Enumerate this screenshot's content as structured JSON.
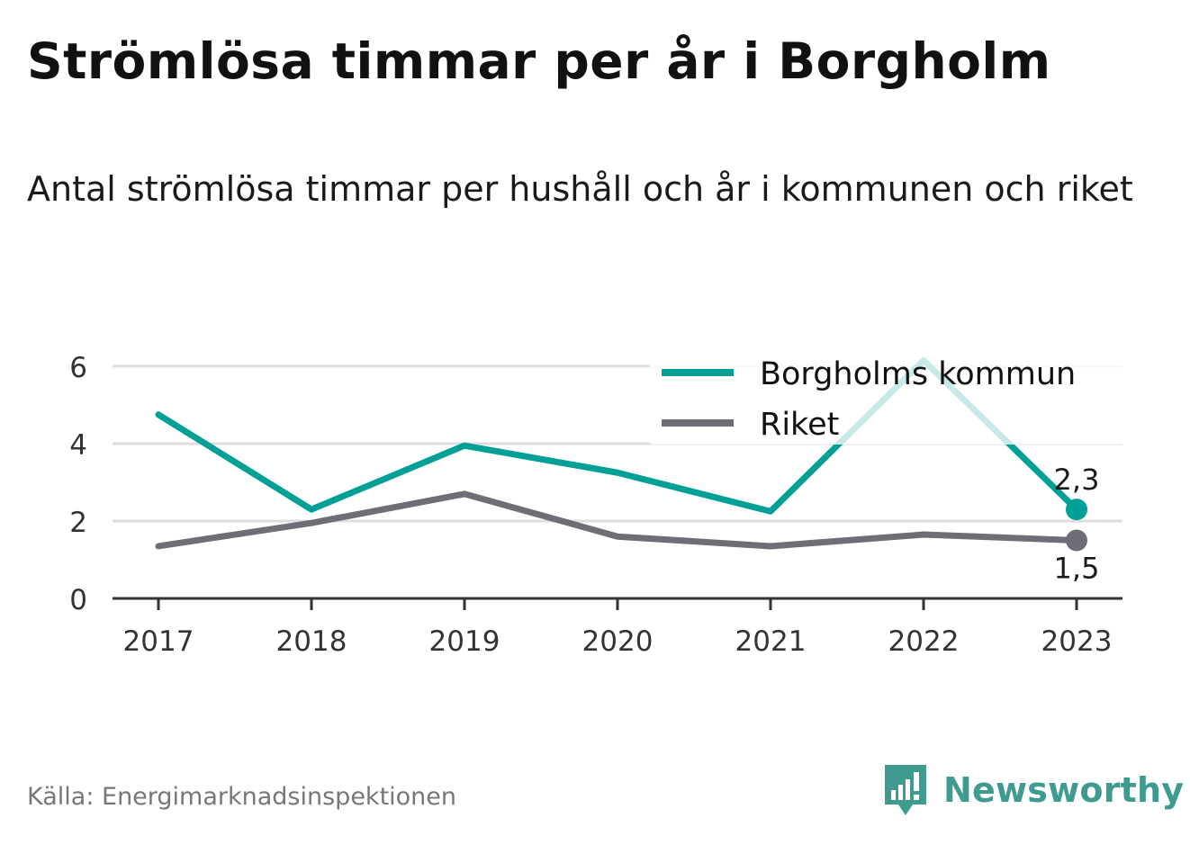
{
  "title": "Strömlösa timmar per år i Borgholm",
  "subtitle": "Antal strömlösa timmar per hushåll och år i kommunen och riket",
  "source": "Källa: Energimarknadsinspektionen",
  "brand": "Newsworthy",
  "colors": {
    "borgholm": "#00a096",
    "riket": "#6e6e76",
    "grid": "#dddddd",
    "axis": "#333333",
    "brand": "#3f9a8f"
  },
  "chart_data": {
    "type": "line",
    "x": [
      "2017",
      "2018",
      "2019",
      "2020",
      "2021",
      "2022",
      "2023"
    ],
    "series": [
      {
        "name": "Borgholms kommun",
        "values": [
          4.75,
          2.3,
          3.95,
          3.25,
          2.25,
          6.15,
          2.3
        ],
        "end_label": "2,3"
      },
      {
        "name": "Riket",
        "values": [
          1.35,
          1.95,
          2.7,
          1.6,
          1.35,
          1.65,
          1.5
        ],
        "end_label": "1,5"
      }
    ],
    "yticks": [
      "0",
      "2",
      "4",
      "6"
    ],
    "ylim": [
      0,
      6
    ],
    "grid": true,
    "legend_position": "top-right"
  }
}
